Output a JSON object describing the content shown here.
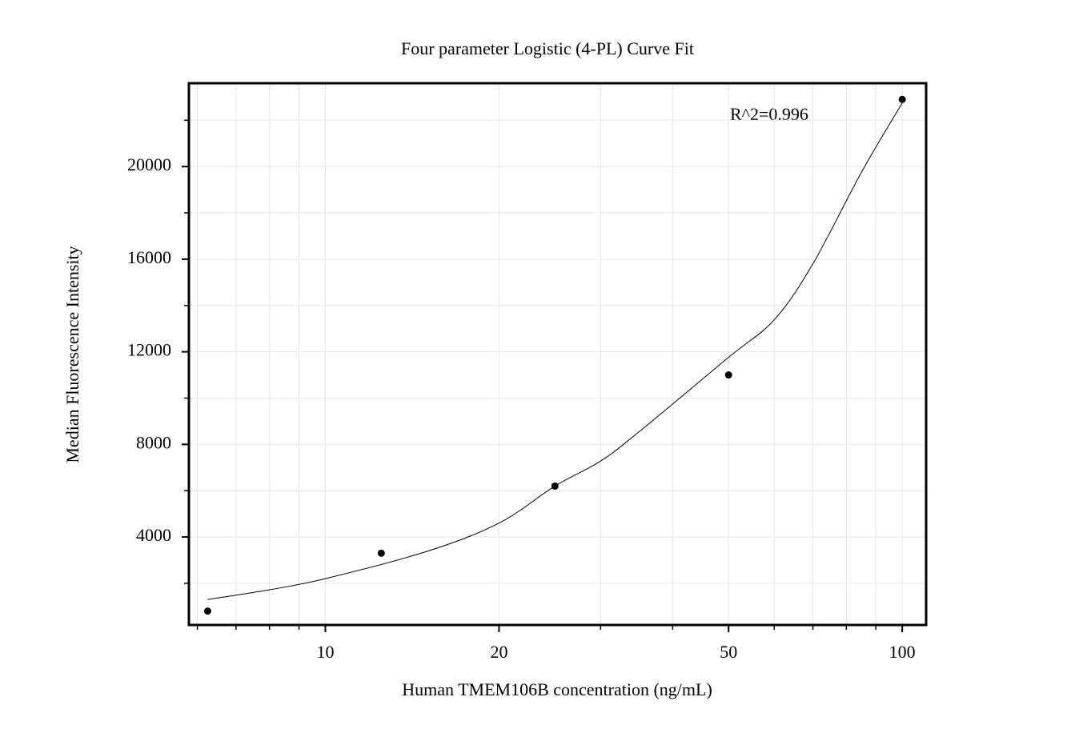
{
  "chart_data": {
    "type": "scatter",
    "title": "Four parameter Logistic (4-PL) Curve Fit",
    "x_label": "Human TMEM106B concentration (ng/mL)",
    "y_label": "Median Fluorescence Intensity",
    "annotation": "R^2=0.996",
    "xscale": "log",
    "grid": true,
    "xlim": [
      5.8,
      110
    ],
    "ylim": [
      200,
      23600
    ],
    "xticks": [
      10,
      20,
      50,
      100
    ],
    "xminor": [
      6,
      7,
      8,
      9,
      30,
      40,
      60,
      70,
      80,
      90
    ],
    "yticks": [
      4000,
      8000,
      12000,
      16000,
      20000
    ],
    "yminor": [
      2000,
      6000,
      10000,
      14000,
      18000,
      22000
    ],
    "series": [
      {
        "type": "scatter",
        "color": "#000000",
        "x": [
          6.25,
          12.5,
          25,
          50,
          100
        ],
        "values": [
          800,
          3300,
          6200,
          11000,
          22900
        ]
      },
      {
        "type": "line",
        "color": "#000000",
        "x": [
          6.25,
          8,
          10,
          15,
          20,
          25,
          30,
          35,
          50,
          60,
          70,
          85,
          100
        ],
        "values": [
          1300,
          1720,
          2200,
          3380,
          4600,
          6200,
          7280,
          8550,
          11760,
          13380,
          15800,
          19760,
          22750
        ]
      }
    ]
  }
}
